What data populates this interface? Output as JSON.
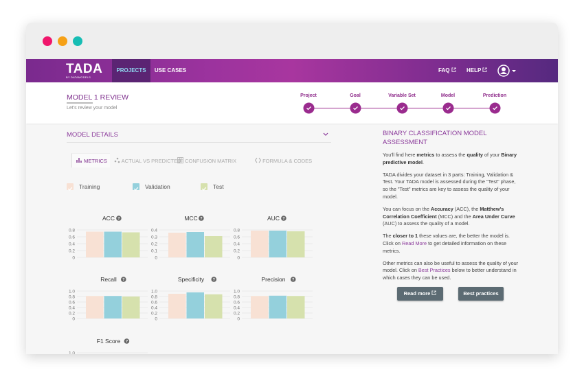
{
  "nav": {
    "logo": "TADA",
    "logo_sub": "BY DATAMODELS",
    "left": [
      "PROJECTS",
      "USE CASES"
    ],
    "active": 0,
    "right": [
      "FAQ",
      "HELP"
    ]
  },
  "header": {
    "title": "MODEL 1 REVIEW",
    "subtitle": "Let's review your model"
  },
  "steps": [
    "Project",
    "Goal",
    "Variable Set",
    "Model",
    "Prediction"
  ],
  "details": {
    "title": "MODEL DETAILS",
    "tabs": [
      "METRICS",
      "ACTUAL VS PREDICTED",
      "CONFUSION MATRIX",
      "FORMULA & CODES"
    ],
    "active_tab": 0,
    "series": [
      {
        "name": "Training",
        "color": "#f8e1d4"
      },
      {
        "name": "Validation",
        "color": "#94d0dc"
      },
      {
        "name": "Test",
        "color": "#d6e1ad"
      }
    ],
    "charts": [
      {
        "type": "bar",
        "title": "ACC",
        "ylim": [
          0,
          0.8
        ],
        "yticks": [
          0,
          0.2,
          0.4,
          0.6,
          0.8
        ],
        "values": [
          0.75,
          0.75,
          0.73
        ]
      },
      {
        "type": "bar",
        "title": "MCC",
        "ylim": [
          0,
          0.4
        ],
        "yticks": [
          0,
          0.1,
          0.2,
          0.3,
          0.4
        ],
        "values": [
          0.36,
          0.37,
          0.31
        ]
      },
      {
        "type": "bar",
        "title": "AUC",
        "ylim": [
          0,
          0.8
        ],
        "yticks": [
          0,
          0.2,
          0.4,
          0.6,
          0.8
        ],
        "values": [
          0.78,
          0.78,
          0.76
        ]
      },
      {
        "type": "bar",
        "title": "Recall",
        "ylim": [
          0,
          1
        ],
        "yticks": [
          0,
          0.2,
          0.4,
          0.6,
          0.8,
          {
            "value": 1,
            "label": "1.0"
          }
        ],
        "values": [
          0.82,
          0.82,
          0.8
        ]
      },
      {
        "type": "bar",
        "title": "Specificity",
        "ylim": [
          0,
          1
        ],
        "yticks": [
          0,
          0.2,
          0.4,
          0.6,
          0.8,
          {
            "value": 1,
            "label": "1.0"
          }
        ],
        "values": [
          0.9,
          0.95,
          0.88
        ]
      },
      {
        "type": "bar",
        "title": "Precision",
        "ylim": [
          0,
          1
        ],
        "yticks": [
          0,
          0.2,
          0.4,
          0.6,
          0.8,
          {
            "value": 1,
            "label": "1.0"
          }
        ],
        "values": [
          0.82,
          0.83,
          0.82
        ]
      },
      {
        "type": "bar",
        "title": "F1 Score",
        "yticks": [
          {
            "value": 1,
            "label": "1.0"
          }
        ]
      }
    ]
  },
  "assessment": {
    "title": "BINARY CLASSIFICATION MODEL ASSESSMENT",
    "paragraphs": [
      [
        {
          "text": "You'll find here ",
          "style": "normal"
        },
        {
          "text": "metrics",
          "style": "bold"
        },
        {
          "text": " to assess the ",
          "style": "normal"
        },
        {
          "text": "quality",
          "style": "bold"
        },
        {
          "text": " of your ",
          "style": "normal"
        },
        {
          "text": "Binary predictive model",
          "style": "bold"
        },
        {
          "text": ".",
          "style": "normal"
        }
      ],
      [
        {
          "text": "TADA divides your dataset in 3 parts: Training, Validation & Test. Your TADA model is assessed during the \"Test\" phase, so the \"Test\" metrics are key to assess the quality of your model.",
          "style": "normal"
        }
      ],
      [
        {
          "text": "You can focus on the ",
          "style": "normal"
        },
        {
          "text": "Accuracy",
          "style": "bold"
        },
        {
          "text": " (ACC), the ",
          "style": "normal"
        },
        {
          "text": "Matthew's Correlation Coefficient",
          "style": "bold"
        },
        {
          "text": " (MCC) and the ",
          "style": "normal"
        },
        {
          "text": "Area Under Curve",
          "style": "bold"
        },
        {
          "text": " (AUC) to assess the quality of a model.",
          "style": "normal"
        }
      ],
      [
        {
          "text": "The ",
          "style": "normal"
        },
        {
          "text": "closer to 1",
          "style": "bold"
        },
        {
          "text": " these values are, the better the model is. Click on ",
          "style": "normal"
        },
        {
          "text": "Read More",
          "style": "link"
        },
        {
          "text": " to get detailed information on these metrics.",
          "style": "normal"
        }
      ],
      [
        {
          "text": "Other metrics can also be useful to assess the quality of your model. Click on ",
          "style": "normal"
        },
        {
          "text": "Best Practices",
          "style": "link"
        },
        {
          "text": " below to better understand in which cases they can be used.",
          "style": "normal"
        }
      ]
    ],
    "buttons": [
      "Read more",
      "Best practices"
    ]
  }
}
